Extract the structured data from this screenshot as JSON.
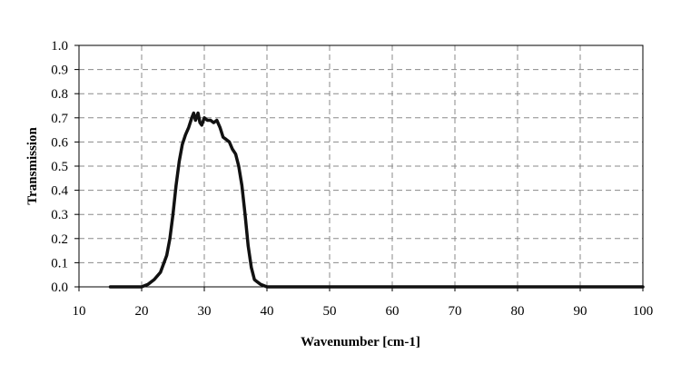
{
  "chart_data": {
    "type": "line",
    "title": "",
    "xlabel": "Wavenumber [cm-1]",
    "ylabel": "Transmission",
    "xlim": [
      10,
      100
    ],
    "ylim": [
      0.0,
      1.0
    ],
    "x_ticks": [
      10,
      20,
      30,
      40,
      50,
      60,
      70,
      80,
      90,
      100
    ],
    "x_tick_labels": [
      "10",
      "20",
      "30",
      "40",
      "50",
      "60",
      "70",
      "80",
      "90",
      "100"
    ],
    "y_ticks": [
      0.0,
      0.1,
      0.2,
      0.3,
      0.4,
      0.5,
      0.6,
      0.7,
      0.8,
      0.9,
      1.0
    ],
    "y_tick_labels": [
      "0.0",
      "0.1",
      "0.2",
      "0.3",
      "0.4",
      "0.5",
      "0.6",
      "0.7",
      "0.8",
      "0.9",
      "1.0"
    ],
    "grid": true,
    "legend": "none",
    "series": [
      {
        "color": "#111111",
        "x": [
          15,
          20,
          21,
          22,
          23,
          24,
          24.5,
          25,
          25.5,
          26,
          26.5,
          27,
          27.5,
          28,
          28.3,
          28.6,
          29,
          29.3,
          29.6,
          30,
          30.5,
          31,
          31.5,
          32,
          32.5,
          33,
          33.5,
          34,
          34.5,
          35,
          35.5,
          36,
          36.5,
          37,
          37.5,
          38,
          38.5,
          39,
          40,
          41,
          42,
          50,
          60,
          70,
          80,
          90,
          100
        ],
        "y": [
          0.0,
          0.0,
          0.01,
          0.03,
          0.06,
          0.13,
          0.2,
          0.3,
          0.42,
          0.52,
          0.59,
          0.63,
          0.66,
          0.7,
          0.72,
          0.69,
          0.72,
          0.68,
          0.67,
          0.7,
          0.69,
          0.69,
          0.68,
          0.69,
          0.66,
          0.62,
          0.61,
          0.6,
          0.57,
          0.55,
          0.5,
          0.42,
          0.3,
          0.17,
          0.08,
          0.03,
          0.02,
          0.01,
          0.0,
          0.0,
          0.0,
          0.0,
          0.0,
          0.0,
          0.0,
          0.0,
          0.0
        ]
      }
    ]
  }
}
